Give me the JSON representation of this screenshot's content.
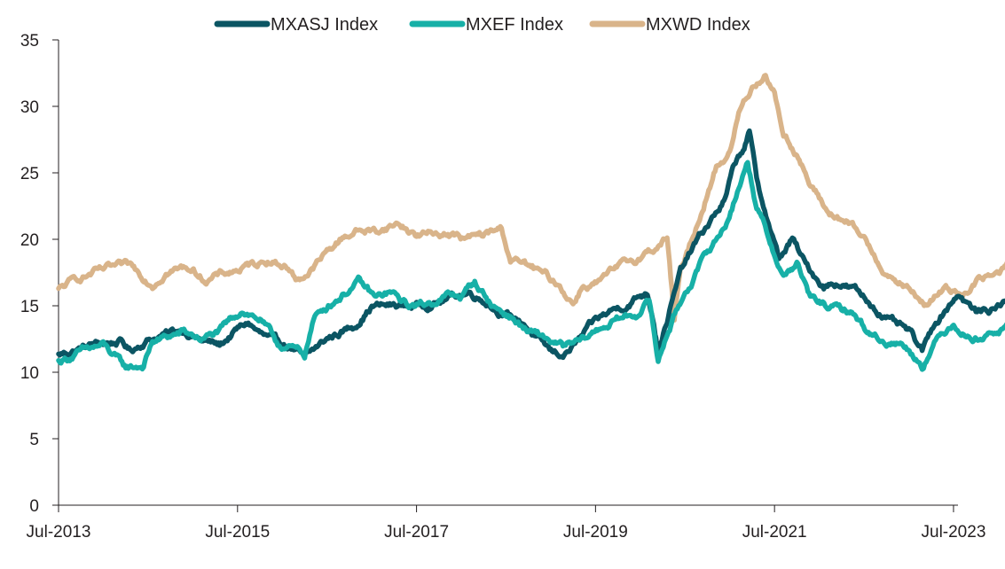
{
  "chart_data": {
    "type": "line",
    "title": "",
    "xlabel": "",
    "ylabel": "",
    "ylim": [
      0,
      35
    ],
    "yticks": [
      0,
      5,
      10,
      15,
      20,
      25,
      30,
      35
    ],
    "x_tick_labels": [
      "Jul-2013",
      "Jul-2015",
      "Jul-2017",
      "Jul-2019",
      "Jul-2021",
      "Jul-2023"
    ],
    "x_tick_positions": [
      2013.5,
      2015.5,
      2017.5,
      2019.5,
      2021.5,
      2023.5
    ],
    "xlim": [
      2013.5,
      2023.55
    ],
    "grid": false,
    "legend_position": "top",
    "series": [
      {
        "name": "MXASJ Index",
        "color": "#0b5563",
        "points": [
          [
            2013.5,
            11.3
          ],
          [
            2013.9,
            12.1
          ],
          [
            2014.2,
            12.3
          ],
          [
            2014.3,
            11.6
          ],
          [
            2014.5,
            12.5
          ],
          [
            2014.9,
            13.2
          ],
          [
            2015.1,
            12.4
          ],
          [
            2015.3,
            12.0
          ],
          [
            2015.5,
            13.2
          ],
          [
            2015.62,
            13.7
          ],
          [
            2015.75,
            12.9
          ],
          [
            2015.92,
            12.2
          ],
          [
            2016.1,
            11.9
          ],
          [
            2016.25,
            11.0
          ],
          [
            2016.5,
            12.5
          ],
          [
            2016.8,
            13.5
          ],
          [
            2017.0,
            15.0
          ],
          [
            2017.2,
            15.0
          ],
          [
            2017.5,
            15.0
          ],
          [
            2017.75,
            15.3
          ],
          [
            2017.95,
            15.8
          ],
          [
            2018.1,
            16.0
          ],
          [
            2018.25,
            15.5
          ],
          [
            2018.5,
            14.3
          ],
          [
            2018.7,
            13.7
          ],
          [
            2018.85,
            12.5
          ],
          [
            2019.0,
            11.5
          ],
          [
            2019.15,
            11.3
          ],
          [
            2019.3,
            12.3
          ],
          [
            2019.5,
            13.8
          ],
          [
            2019.7,
            14.7
          ],
          [
            2019.85,
            15.1
          ],
          [
            2020.0,
            15.8
          ],
          [
            2020.08,
            16.0
          ],
          [
            2020.15,
            14.0
          ],
          [
            2020.2,
            11.8
          ],
          [
            2020.3,
            14.0
          ],
          [
            2020.45,
            17.5
          ],
          [
            2020.6,
            19.5
          ],
          [
            2020.8,
            21.5
          ],
          [
            2020.95,
            23.0
          ],
          [
            2021.05,
            25.5
          ],
          [
            2021.15,
            26.8
          ],
          [
            2021.22,
            28.0
          ],
          [
            2021.3,
            24.5
          ],
          [
            2021.42,
            21.5
          ],
          [
            2021.55,
            18.5
          ],
          [
            2021.7,
            20.0
          ],
          [
            2021.85,
            18.0
          ],
          [
            2022.05,
            16.5
          ],
          [
            2022.2,
            16.8
          ],
          [
            2022.4,
            16.2
          ],
          [
            2022.6,
            15.0
          ],
          [
            2022.8,
            13.8
          ],
          [
            2023.0,
            13.0
          ],
          [
            2023.15,
            11.5
          ],
          [
            2023.3,
            13.8
          ],
          [
            2023.55,
            16.0
          ],
          [
            2023.75,
            14.5
          ],
          [
            2023.95,
            14.8
          ],
          [
            2024.1,
            15.4
          ],
          [
            2024.2,
            15.7
          ]
        ]
      },
      {
        "name": "MXEF Index",
        "color": "#17b0a7",
        "points": [
          [
            2013.5,
            10.8
          ],
          [
            2013.75,
            11.5
          ],
          [
            2014.0,
            12.0
          ],
          [
            2014.25,
            10.3
          ],
          [
            2014.45,
            10.5
          ],
          [
            2014.55,
            12.3
          ],
          [
            2014.9,
            13.0
          ],
          [
            2015.1,
            12.5
          ],
          [
            2015.3,
            13.0
          ],
          [
            2015.55,
            14.7
          ],
          [
            2015.75,
            14.0
          ],
          [
            2015.95,
            12.1
          ],
          [
            2016.1,
            11.8
          ],
          [
            2016.25,
            11.3
          ],
          [
            2016.35,
            14.0
          ],
          [
            2016.5,
            15.0
          ],
          [
            2016.7,
            16.0
          ],
          [
            2016.85,
            16.8
          ],
          [
            2017.05,
            15.5
          ],
          [
            2017.2,
            16.0
          ],
          [
            2017.4,
            15.0
          ],
          [
            2017.6,
            15.1
          ],
          [
            2017.85,
            15.8
          ],
          [
            2018.0,
            15.7
          ],
          [
            2018.15,
            16.8
          ],
          [
            2018.35,
            15.0
          ],
          [
            2018.55,
            14.2
          ],
          [
            2018.75,
            13.0
          ],
          [
            2018.95,
            12.5
          ],
          [
            2019.15,
            11.8
          ],
          [
            2019.35,
            12.3
          ],
          [
            2019.55,
            13.3
          ],
          [
            2019.75,
            14.0
          ],
          [
            2019.95,
            14.3
          ],
          [
            2020.1,
            15.5
          ],
          [
            2020.2,
            10.8
          ],
          [
            2020.3,
            13.0
          ],
          [
            2020.5,
            16.0
          ],
          [
            2020.75,
            19.0
          ],
          [
            2020.95,
            21.0
          ],
          [
            2021.1,
            24.0
          ],
          [
            2021.2,
            25.8
          ],
          [
            2021.3,
            22.5
          ],
          [
            2021.45,
            19.8
          ],
          [
            2021.6,
            17.2
          ],
          [
            2021.75,
            18.2
          ],
          [
            2021.9,
            15.5
          ],
          [
            2022.15,
            14.8
          ],
          [
            2022.35,
            14.6
          ],
          [
            2022.55,
            13.0
          ],
          [
            2022.75,
            12.3
          ],
          [
            2022.95,
            12.1
          ],
          [
            2023.15,
            10.6
          ],
          [
            2023.3,
            12.3
          ],
          [
            2023.5,
            13.8
          ],
          [
            2023.7,
            12.5
          ],
          [
            2023.9,
            12.9
          ],
          [
            2024.05,
            13.2
          ],
          [
            2024.15,
            13.7
          ]
        ]
      },
      {
        "name": "MXWD Index",
        "color": "#d9b48a",
        "points": [
          [
            2013.5,
            16.2
          ],
          [
            2013.7,
            17.0
          ],
          [
            2013.9,
            17.5
          ],
          [
            2014.1,
            17.8
          ],
          [
            2014.3,
            17.9
          ],
          [
            2014.55,
            16.7
          ],
          [
            2014.7,
            17.6
          ],
          [
            2014.95,
            17.9
          ],
          [
            2015.15,
            17.0
          ],
          [
            2015.4,
            17.5
          ],
          [
            2015.65,
            18.0
          ],
          [
            2015.85,
            18.5
          ],
          [
            2016.05,
            18.0
          ],
          [
            2016.15,
            17.0
          ],
          [
            2016.3,
            17.5
          ],
          [
            2016.5,
            19.0
          ],
          [
            2016.7,
            20.3
          ],
          [
            2016.85,
            20.7
          ],
          [
            2017.05,
            20.6
          ],
          [
            2017.3,
            21.2
          ],
          [
            2017.5,
            20.3
          ],
          [
            2017.7,
            20.5
          ],
          [
            2017.85,
            20.5
          ],
          [
            2018.05,
            20.0
          ],
          [
            2018.3,
            20.4
          ],
          [
            2018.45,
            20.8
          ],
          [
            2018.55,
            18.5
          ],
          [
            2018.75,
            18.0
          ],
          [
            2018.95,
            17.2
          ],
          [
            2019.1,
            16.5
          ],
          [
            2019.25,
            15.2
          ],
          [
            2019.35,
            16.5
          ],
          [
            2019.55,
            16.8
          ],
          [
            2019.75,
            17.8
          ],
          [
            2019.95,
            18.5
          ],
          [
            2020.2,
            19.5
          ],
          [
            2020.3,
            20.2
          ],
          [
            2020.38,
            14.0
          ],
          [
            2020.45,
            17.5
          ],
          [
            2020.65,
            21.5
          ],
          [
            2020.85,
            25.5
          ],
          [
            2021.0,
            26.5
          ],
          [
            2021.1,
            29.5
          ],
          [
            2021.25,
            31.5
          ],
          [
            2021.4,
            32.5
          ],
          [
            2021.5,
            31.0
          ],
          [
            2021.6,
            28.0
          ],
          [
            2021.75,
            26.5
          ],
          [
            2021.9,
            24.0
          ],
          [
            2022.1,
            22.0
          ],
          [
            2022.3,
            21.3
          ],
          [
            2022.5,
            20.0
          ],
          [
            2022.65,
            18.5
          ],
          [
            2022.8,
            17.0
          ],
          [
            2022.95,
            16.5
          ],
          [
            2023.2,
            15.0
          ],
          [
            2023.4,
            16.3
          ],
          [
            2023.6,
            16.0
          ],
          [
            2023.8,
            17.0
          ],
          [
            2024.0,
            17.3
          ],
          [
            2024.1,
            18.0
          ],
          [
            2024.2,
            18.7
          ]
        ]
      }
    ]
  }
}
